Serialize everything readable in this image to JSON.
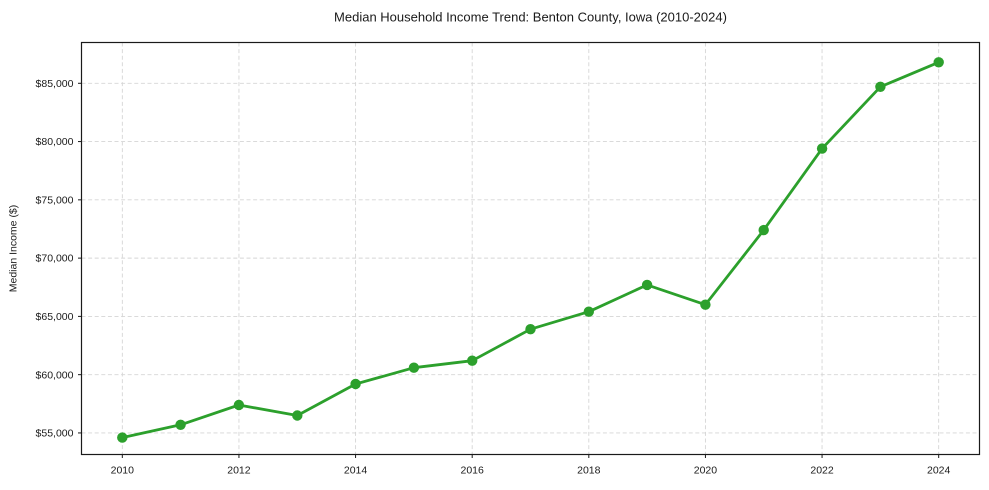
{
  "chart_data": {
    "type": "line",
    "title": "Median Household Income Trend: Benton County, Iowa (2010-2024)",
    "xlabel": "",
    "ylabel": "Median Income ($)",
    "series": [
      {
        "name": "Median household income",
        "x": [
          2010,
          2011,
          2012,
          2013,
          2014,
          2015,
          2016,
          2017,
          2018,
          2019,
          2020,
          2021,
          2022,
          2023,
          2024
        ],
        "values": [
          54600,
          55700,
          57400,
          56500,
          59200,
          60600,
          61200,
          63900,
          65400,
          67700,
          66000,
          72400,
          79400,
          84700,
          86800
        ]
      }
    ],
    "xlim": [
      2009.3,
      2024.7
    ],
    "ylim": [
      53150,
      88500
    ],
    "x_ticks": [
      2010,
      2012,
      2014,
      2016,
      2018,
      2020,
      2022,
      2024
    ],
    "x_tick_labels": [
      "2010",
      "2012",
      "2014",
      "2016",
      "2018",
      "2020",
      "2022",
      "2024"
    ],
    "y_ticks": [
      55000,
      60000,
      65000,
      70000,
      75000,
      80000,
      85000
    ],
    "y_tick_labels": [
      "$55,000",
      "$60,000",
      "$65,000",
      "$70,000",
      "$75,000",
      "$80,000",
      "$85,000"
    ],
    "grid": true,
    "grid_style": "dashed",
    "legend_position": "none",
    "marker_shape": "circle",
    "colors": {
      "line": "#2ca02c",
      "marker": "#2ca02c",
      "grid": "#d5d5d5",
      "axis": "#1a1a1a",
      "text": "#1a1a1a",
      "background": "#ffffff"
    }
  }
}
